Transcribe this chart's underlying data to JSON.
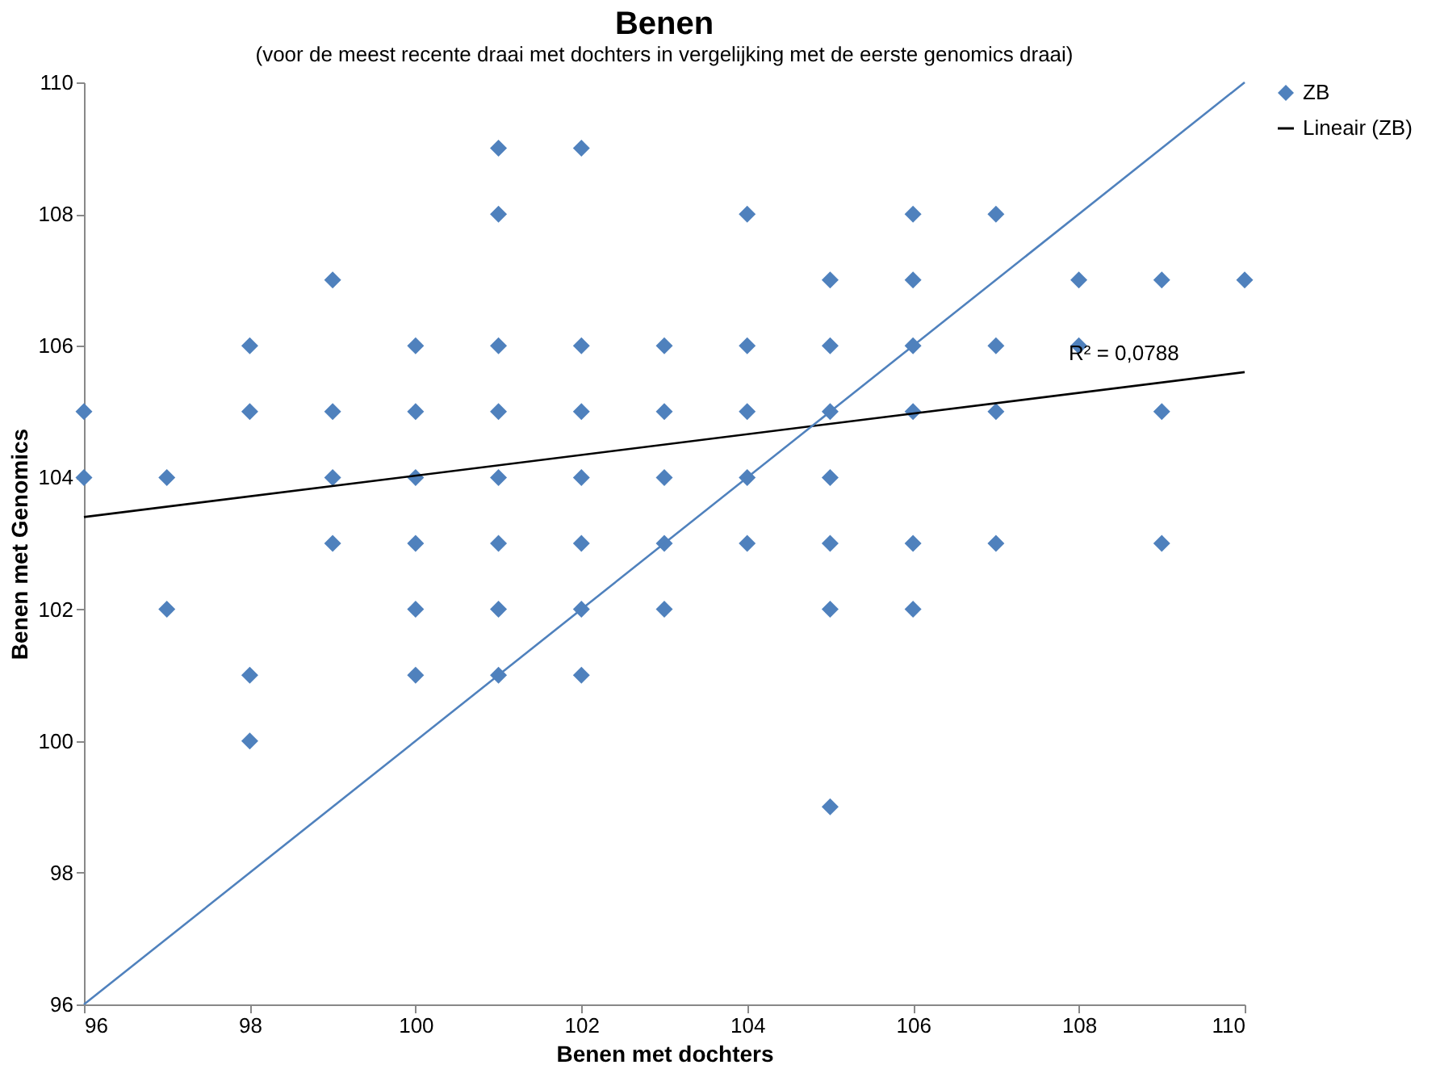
{
  "chart_data": {
    "type": "scatter",
    "title": "Benen",
    "subtitle": "(voor de meest recente draai met dochters in vergelijking met de eerste genomics draai)",
    "xlabel": "Benen met dochters",
    "ylabel": "Benen met Genomics",
    "xlim": [
      96,
      110
    ],
    "ylim": [
      96,
      110
    ],
    "xticks": [
      96,
      98,
      100,
      102,
      104,
      106,
      108,
      110
    ],
    "yticks": [
      96,
      98,
      100,
      102,
      104,
      106,
      108,
      110
    ],
    "grid": false,
    "legend": "right",
    "marker": "diamond",
    "series": [
      {
        "name": "ZB",
        "color": "#4f81bd",
        "x": [
          96,
          96,
          97,
          97,
          98,
          98,
          98,
          98,
          99,
          99,
          99,
          99,
          100,
          100,
          100,
          100,
          100,
          100,
          101,
          101,
          101,
          101,
          101,
          101,
          101,
          101,
          102,
          102,
          102,
          102,
          102,
          102,
          102,
          103,
          103,
          103,
          103,
          103,
          104,
          104,
          104,
          104,
          104,
          105,
          105,
          105,
          105,
          105,
          105,
          105,
          106,
          106,
          106,
          106,
          106,
          106,
          107,
          107,
          107,
          107,
          108,
          108,
          109,
          109,
          109,
          110
        ],
        "values": [
          105,
          104,
          104,
          102,
          106,
          105,
          101,
          100,
          107,
          105,
          104,
          103,
          106,
          105,
          104,
          103,
          102,
          101,
          109,
          108,
          106,
          105,
          104,
          103,
          102,
          101,
          109,
          106,
          105,
          104,
          103,
          102,
          101,
          106,
          105,
          104,
          103,
          102,
          108,
          106,
          105,
          104,
          103,
          107,
          106,
          105,
          104,
          103,
          102,
          99,
          108,
          107,
          106,
          105,
          103,
          102,
          108,
          106,
          105,
          103,
          107,
          106,
          107,
          105,
          103,
          107
        ]
      },
      {
        "name": "Lineair (ZB)",
        "color": "#000000",
        "type": "line",
        "marker": "none",
        "line_style": "solid",
        "x": [
          96,
          110
        ],
        "values": [
          103.4,
          105.6
        ]
      },
      {
        "color": "#4f81bd",
        "type": "line",
        "marker": "none",
        "line_style": "solid",
        "x": [
          96,
          110
        ],
        "values": [
          96,
          110
        ]
      }
    ],
    "annotations": [
      "R² = 0,0788"
    ]
  }
}
